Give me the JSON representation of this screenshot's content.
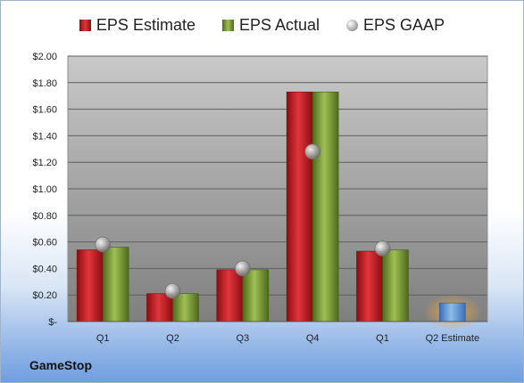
{
  "chart_data": {
    "type": "bar",
    "categories": [
      "Q1",
      "Q2",
      "Q3",
      "Q4",
      "Q1",
      "Q2 Estimate"
    ],
    "series": [
      {
        "name": "EPS Estimate",
        "values": [
          0.54,
          0.21,
          0.39,
          1.73,
          0.53,
          null
        ],
        "color": "#c81e24"
      },
      {
        "name": "EPS Actual",
        "values": [
          0.56,
          0.21,
          0.39,
          1.73,
          0.54,
          null
        ],
        "color": "#7ba03a"
      },
      {
        "name": "EPS GAAP",
        "values": [
          0.58,
          0.23,
          0.4,
          1.28,
          0.55,
          null
        ],
        "color": "#a9a9a9"
      }
    ],
    "estimate_bar": {
      "category": "Q2 Estimate",
      "value": 0.14,
      "color": "#5e97d8"
    },
    "ylim": [
      0,
      2.0
    ],
    "yticks": [
      "$-",
      "$0.20",
      "$0.40",
      "$0.60",
      "$0.80",
      "$1.00",
      "$1.20",
      "$1.40",
      "$1.60",
      "$1.80",
      "$2.00"
    ],
    "legend_position": "top-center",
    "grid": true
  },
  "legend": {
    "estimate": "EPS Estimate",
    "actual": "EPS Actual",
    "gaap": "EPS GAAP"
  },
  "company": "GameStop"
}
